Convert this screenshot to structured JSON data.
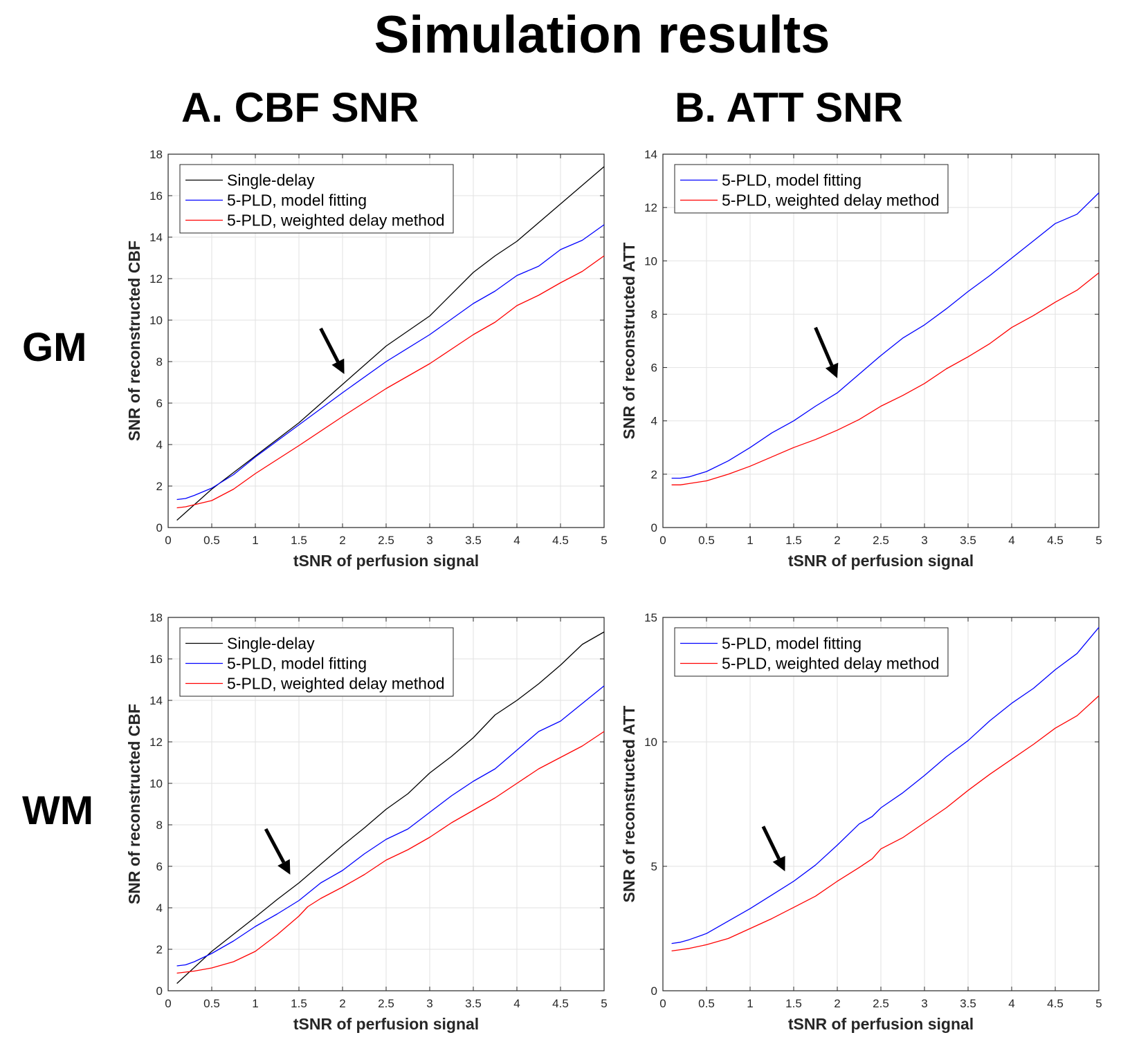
{
  "header": {
    "title": "Simulation results",
    "col_a": "A. CBF SNR",
    "col_b": "B. ATT SNR",
    "row_gm": "GM",
    "row_wm": "WM"
  },
  "colors": {
    "single": "#000000",
    "fit": "#0000ff",
    "weighted": "#ff0000",
    "grid": "#e2e2e2"
  },
  "chart_data": [
    {
      "id": "gm-cbf",
      "type": "line",
      "xlabel": "tSNR of perfusion signal",
      "ylabel": "SNR of reconstructed CBF",
      "xlim": [
        0,
        5
      ],
      "ylim": [
        0,
        18
      ],
      "xticks": [
        0,
        0.5,
        1,
        1.5,
        2,
        2.5,
        3,
        3.5,
        4,
        4.5,
        5
      ],
      "yticks": [
        0,
        2,
        4,
        6,
        8,
        10,
        12,
        14,
        16,
        18
      ],
      "legend": "top-left",
      "annotation": {
        "type": "arrow",
        "label": "arrow",
        "from": [
          1.75,
          9.6
        ],
        "to": [
          2.02,
          7.4
        ]
      },
      "series": [
        {
          "name": "Single-delay",
          "color": "#000000",
          "x": [
            0.1,
            0.5,
            1,
            1.5,
            2,
            2.5,
            3,
            3.5,
            3.75,
            4,
            4.5,
            5
          ],
          "y": [
            0.35,
            1.85,
            3.45,
            5.05,
            6.9,
            8.75,
            10.2,
            12.3,
            13.1,
            13.8,
            15.6,
            17.4
          ]
        },
        {
          "name": "5-PLD, model fitting",
          "color": "#0000ff",
          "x": [
            0.1,
            0.2,
            0.3,
            0.5,
            0.75,
            1,
            1.5,
            2,
            2.5,
            3,
            3.5,
            3.75,
            4,
            4.25,
            4.5,
            4.75,
            5
          ],
          "y": [
            1.35,
            1.4,
            1.55,
            1.9,
            2.55,
            3.4,
            4.95,
            6.5,
            8.0,
            9.3,
            10.8,
            11.4,
            12.15,
            12.6,
            13.4,
            13.85,
            14.6
          ]
        },
        {
          "name": "5-PLD, weighted delay method",
          "color": "#ff0000",
          "x": [
            0.1,
            0.2,
            0.3,
            0.5,
            0.75,
            1,
            1.5,
            2,
            2.5,
            3,
            3.5,
            3.75,
            4,
            4.25,
            4.5,
            4.75,
            5
          ],
          "y": [
            0.95,
            1.0,
            1.1,
            1.3,
            1.85,
            2.6,
            3.95,
            5.35,
            6.7,
            7.9,
            9.3,
            9.9,
            10.7,
            11.2,
            11.8,
            12.35,
            13.1
          ]
        }
      ]
    },
    {
      "id": "gm-att",
      "type": "line",
      "xlabel": "tSNR of perfusion signal",
      "ylabel": "SNR of reconstructed ATT",
      "xlim": [
        0,
        5
      ],
      "ylim": [
        0,
        14
      ],
      "xticks": [
        0,
        0.5,
        1,
        1.5,
        2,
        2.5,
        3,
        3.5,
        4,
        4.5,
        5
      ],
      "yticks": [
        0,
        2,
        4,
        6,
        8,
        10,
        12,
        14
      ],
      "legend": "top-left",
      "annotation": {
        "type": "arrow",
        "label": "arrow",
        "from": [
          1.75,
          7.5
        ],
        "to": [
          2.0,
          5.6
        ]
      },
      "series": [
        {
          "name": "5-PLD, model fitting",
          "color": "#0000ff",
          "x": [
            0.1,
            0.2,
            0.3,
            0.5,
            0.75,
            1,
            1.25,
            1.5,
            1.75,
            2,
            2.25,
            2.5,
            2.75,
            3,
            3.25,
            3.5,
            3.75,
            4,
            4.25,
            4.5,
            4.75,
            5
          ],
          "y": [
            1.85,
            1.85,
            1.9,
            2.1,
            2.5,
            3.0,
            3.55,
            4.0,
            4.55,
            5.05,
            5.75,
            6.45,
            7.1,
            7.6,
            8.2,
            8.85,
            9.45,
            10.1,
            10.75,
            11.4,
            11.75,
            12.55
          ]
        },
        {
          "name": "5-PLD, weighted delay method",
          "color": "#ff0000",
          "x": [
            0.1,
            0.2,
            0.3,
            0.5,
            0.75,
            1,
            1.25,
            1.5,
            1.75,
            2,
            2.25,
            2.5,
            2.75,
            3,
            3.25,
            3.5,
            3.75,
            4,
            4.25,
            4.5,
            4.75,
            5
          ],
          "y": [
            1.6,
            1.6,
            1.65,
            1.75,
            2.0,
            2.3,
            2.65,
            3.0,
            3.3,
            3.65,
            4.05,
            4.55,
            4.95,
            5.4,
            5.95,
            6.4,
            6.9,
            7.5,
            7.95,
            8.45,
            8.9,
            9.55
          ]
        }
      ]
    },
    {
      "id": "wm-cbf",
      "type": "line",
      "xlabel": "tSNR of perfusion signal",
      "ylabel": "SNR of reconstructed CBF",
      "xlim": [
        0,
        5
      ],
      "ylim": [
        0,
        18
      ],
      "xticks": [
        0,
        0.5,
        1,
        1.5,
        2,
        2.5,
        3,
        3.5,
        4,
        4.5,
        5
      ],
      "yticks": [
        0,
        2,
        4,
        6,
        8,
        10,
        12,
        14,
        16,
        18
      ],
      "legend": "top-left",
      "annotation": {
        "type": "arrow",
        "label": "arrow",
        "from": [
          1.12,
          7.8
        ],
        "to": [
          1.4,
          5.6
        ]
      },
      "series": [
        {
          "name": "Single-delay",
          "color": "#000000",
          "x": [
            0.1,
            0.5,
            1,
            1.25,
            1.5,
            1.75,
            2,
            2.25,
            2.5,
            2.75,
            3,
            3.25,
            3.5,
            3.75,
            4,
            4.25,
            4.5,
            4.75,
            5
          ],
          "y": [
            0.35,
            1.9,
            3.55,
            4.4,
            5.2,
            6.1,
            7.0,
            7.85,
            8.75,
            9.5,
            10.5,
            11.3,
            12.2,
            13.3,
            14.0,
            14.8,
            15.7,
            16.7,
            17.3
          ]
        },
        {
          "name": "5-PLD, model fitting",
          "color": "#0000ff",
          "x": [
            0.1,
            0.2,
            0.3,
            0.5,
            0.75,
            1,
            1.25,
            1.5,
            1.75,
            2,
            2.25,
            2.5,
            2.75,
            3,
            3.25,
            3.5,
            3.75,
            4,
            4.25,
            4.5,
            4.75,
            5
          ],
          "y": [
            1.2,
            1.25,
            1.4,
            1.8,
            2.4,
            3.1,
            3.7,
            4.35,
            5.2,
            5.8,
            6.6,
            7.3,
            7.8,
            8.6,
            9.4,
            10.1,
            10.7,
            11.6,
            12.5,
            13.0,
            13.85,
            14.7
          ]
        },
        {
          "name": "5-PLD, weighted delay method",
          "color": "#ff0000",
          "x": [
            0.1,
            0.2,
            0.3,
            0.5,
            0.75,
            1,
            1.25,
            1.5,
            1.6,
            1.75,
            2,
            2.25,
            2.5,
            2.75,
            3,
            3.25,
            3.5,
            3.75,
            4,
            4.25,
            4.5,
            4.75,
            5
          ],
          "y": [
            0.85,
            0.9,
            0.95,
            1.1,
            1.4,
            1.9,
            2.7,
            3.6,
            4.05,
            4.45,
            5.0,
            5.6,
            6.3,
            6.8,
            7.4,
            8.1,
            8.7,
            9.3,
            10.0,
            10.7,
            11.25,
            11.8,
            12.5
          ]
        }
      ]
    },
    {
      "id": "wm-att",
      "type": "line",
      "xlabel": "tSNR of perfusion signal",
      "ylabel": "SNR of reconstructed ATT",
      "xlim": [
        0,
        5
      ],
      "ylim": [
        0,
        15
      ],
      "xticks": [
        0,
        0.5,
        1,
        1.5,
        2,
        2.5,
        3,
        3.5,
        4,
        4.5,
        5
      ],
      "yticks": [
        0,
        5,
        10,
        15
      ],
      "legend": "top-left",
      "annotation": {
        "type": "arrow",
        "label": "arrow",
        "from": [
          1.15,
          6.6
        ],
        "to": [
          1.4,
          4.8
        ]
      },
      "series": [
        {
          "name": "5-PLD, model fitting",
          "color": "#0000ff",
          "x": [
            0.1,
            0.2,
            0.3,
            0.5,
            0.75,
            1,
            1.25,
            1.5,
            1.75,
            2,
            2.25,
            2.4,
            2.5,
            2.75,
            3,
            3.25,
            3.5,
            3.75,
            4,
            4.25,
            4.5,
            4.75,
            5
          ],
          "y": [
            1.9,
            1.95,
            2.05,
            2.3,
            2.8,
            3.3,
            3.85,
            4.4,
            5.05,
            5.85,
            6.7,
            7.0,
            7.35,
            7.95,
            8.65,
            9.4,
            10.05,
            10.85,
            11.55,
            12.15,
            12.9,
            13.55,
            14.6
          ]
        },
        {
          "name": "5-PLD, weighted delay method",
          "color": "#ff0000",
          "x": [
            0.1,
            0.2,
            0.3,
            0.5,
            0.75,
            1,
            1.25,
            1.5,
            1.75,
            2,
            2.25,
            2.4,
            2.5,
            2.75,
            3,
            3.25,
            3.5,
            3.75,
            4,
            4.25,
            4.5,
            4.75,
            5
          ],
          "y": [
            1.6,
            1.65,
            1.7,
            1.85,
            2.1,
            2.5,
            2.9,
            3.35,
            3.8,
            4.4,
            4.95,
            5.3,
            5.7,
            6.15,
            6.75,
            7.35,
            8.05,
            8.7,
            9.3,
            9.9,
            10.55,
            11.05,
            11.85
          ]
        }
      ]
    }
  ]
}
